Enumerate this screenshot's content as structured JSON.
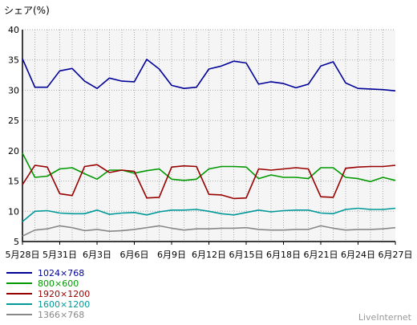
{
  "colors": {
    "plot_background": "#f5f5f5",
    "grid": "#aaaaaa",
    "axis": "#000000",
    "watermark": "#999999"
  },
  "chart_data": {
    "type": "line",
    "ylabel": "シェア(%)",
    "ylim": [
      5,
      40
    ],
    "yticks": [
      5,
      10,
      15,
      20,
      25,
      30,
      35,
      40
    ],
    "grid": true,
    "legend_position": "bottom-left",
    "x": [
      "5月28日",
      "5月29日",
      "5月30日",
      "5月31日",
      "6月1日",
      "6月2日",
      "6月3日",
      "6月4日",
      "6月5日",
      "6月6日",
      "6月7日",
      "6月8日",
      "6月9日",
      "6月10日",
      "6月11日",
      "6月12日",
      "6月13日",
      "6月14日",
      "6月15日",
      "6月16日",
      "6月17日",
      "6月18日",
      "6月19日",
      "6月20日",
      "6月21日",
      "6月22日",
      "6月23日",
      "6月24日",
      "6月25日",
      "6月26日",
      "6月27日"
    ],
    "x_tick_labels": [
      "5月28日",
      "5月31日",
      "6月3日",
      "6月6日",
      "6月9日",
      "6月12日",
      "6月15日",
      "6月18日",
      "6月21日",
      "6月24日",
      "6月27日"
    ],
    "series": [
      {
        "name": "1024×768",
        "color": "#000099",
        "values": [
          35.2,
          30.5,
          30.5,
          33.2,
          33.6,
          31.5,
          30.3,
          32.0,
          31.5,
          31.4,
          35.1,
          33.5,
          30.8,
          30.3,
          30.5,
          33.5,
          34.0,
          34.8,
          34.5,
          31.0,
          31.4,
          31.1,
          30.4,
          31.0,
          34.0,
          34.7,
          31.2,
          30.3,
          30.2,
          30.1,
          29.9
        ]
      },
      {
        "name": "800×600",
        "color": "#009900",
        "values": [
          19.6,
          15.6,
          15.8,
          17.0,
          17.2,
          16.2,
          15.3,
          16.8,
          16.8,
          16.3,
          16.7,
          17.0,
          15.3,
          15.1,
          15.3,
          17.0,
          17.4,
          17.4,
          17.3,
          15.4,
          16.0,
          15.6,
          15.6,
          15.4,
          17.2,
          17.2,
          15.6,
          15.4,
          14.9,
          15.6,
          15.1
        ]
      },
      {
        "name": "1920×1200",
        "color": "#990000",
        "values": [
          14.4,
          17.6,
          17.3,
          12.9,
          12.6,
          17.4,
          17.7,
          16.4,
          16.8,
          16.6,
          12.2,
          12.3,
          17.3,
          17.5,
          17.4,
          12.8,
          12.7,
          12.1,
          12.2,
          17.0,
          16.8,
          17.0,
          17.2,
          17.0,
          12.4,
          12.3,
          17.1,
          17.3,
          17.4,
          17.4,
          17.6
        ]
      },
      {
        "name": "1600×1200",
        "color": "#009999",
        "values": [
          8.3,
          10.0,
          10.1,
          9.7,
          9.6,
          9.6,
          10.2,
          9.5,
          9.7,
          9.8,
          9.4,
          9.9,
          10.2,
          10.2,
          10.3,
          10.0,
          9.6,
          9.4,
          9.8,
          10.2,
          9.9,
          10.1,
          10.2,
          10.2,
          9.7,
          9.6,
          10.3,
          10.5,
          10.3,
          10.3,
          10.5
        ]
      },
      {
        "name": "1366×768",
        "color": "#888888",
        "values": [
          5.9,
          6.9,
          7.1,
          7.6,
          7.3,
          6.8,
          7.0,
          6.7,
          6.8,
          7.0,
          7.3,
          7.6,
          7.2,
          6.9,
          7.1,
          7.1,
          7.2,
          7.2,
          7.3,
          7.0,
          6.9,
          6.9,
          7.0,
          7.0,
          7.6,
          7.2,
          6.9,
          7.0,
          7.0,
          7.1,
          7.3
        ]
      }
    ]
  },
  "watermark": "LiveInternet"
}
